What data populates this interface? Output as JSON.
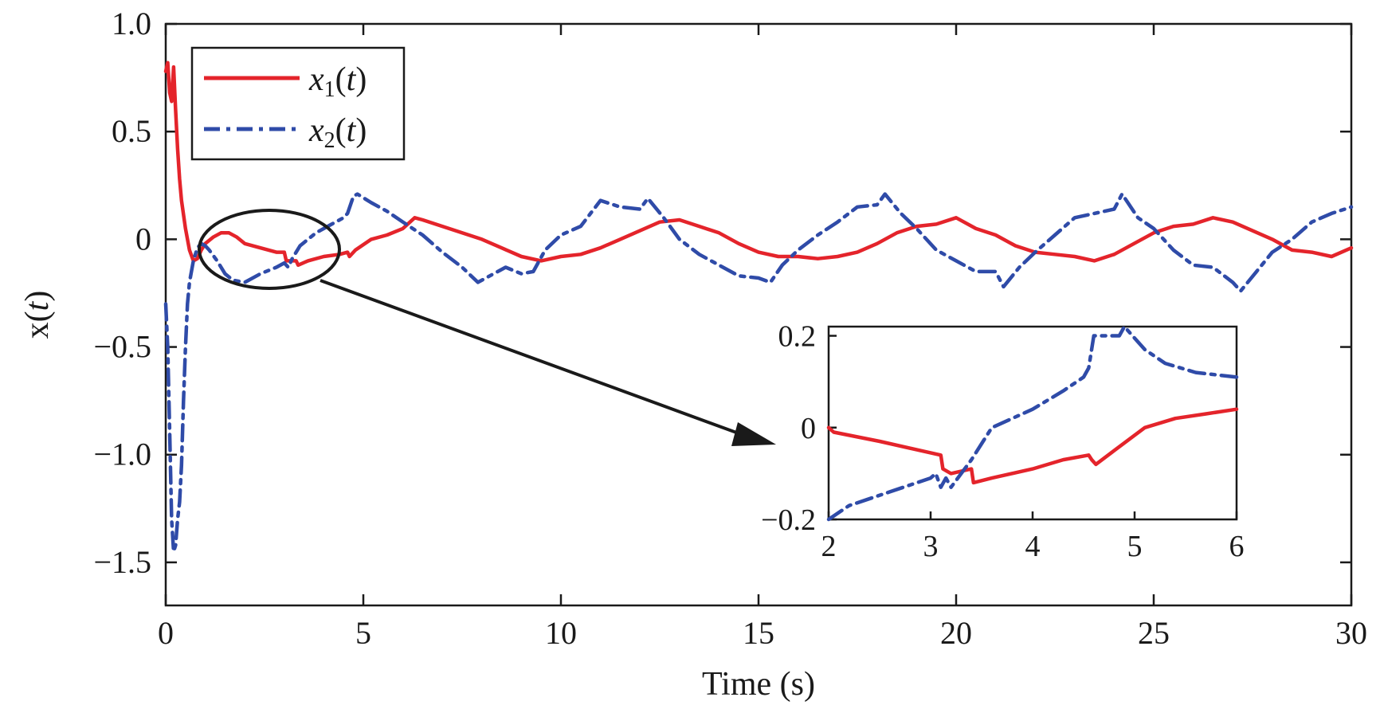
{
  "chart_data": [
    {
      "type": "line",
      "xlabel": "Time (s)",
      "ylabel_main": "x(",
      "ylabel_var": "t",
      "ylabel_close": ")",
      "xlim": [
        0,
        30
      ],
      "ylim": [
        -1.7,
        1.0
      ],
      "xticks": [
        0,
        5,
        10,
        15,
        20,
        25,
        30
      ],
      "xtick_labels": [
        "0",
        "5",
        "10",
        "15",
        "20",
        "25",
        "30"
      ],
      "yticks": [
        1.0,
        0.5,
        0,
        -0.5,
        -1.0,
        -1.5
      ],
      "ytick_labels": [
        "1.0",
        "0.5",
        "0",
        "−0.5",
        "−1.0",
        "−1.5"
      ],
      "grid": false,
      "legend_position": "top-left",
      "series": [
        {
          "name": "x1(t)",
          "legend_base": "x",
          "legend_sub": "1",
          "legend_open": "(",
          "legend_var": "t",
          "legend_close": ")",
          "color": "#e4242b",
          "dash": "solid",
          "x": [
            0,
            0.05,
            0.1,
            0.15,
            0.2,
            0.25,
            0.3,
            0.35,
            0.4,
            0.5,
            0.6,
            0.7,
            0.8,
            0.9,
            1.0,
            1.2,
            1.4,
            1.6,
            1.8,
            2.0,
            2.4,
            2.8,
            3.0,
            3.05,
            3.1,
            3.3,
            3.35,
            3.6,
            4.0,
            4.4,
            4.6,
            4.65,
            4.8,
            5.2,
            5.6,
            6.0,
            6.3,
            6.5,
            7.0,
            7.5,
            8.0,
            8.5,
            9.0,
            9.5,
            10.0,
            10.5,
            11.0,
            11.5,
            12.0,
            12.5,
            13.0,
            13.5,
            14.0,
            14.5,
            15.0,
            15.5,
            16.0,
            16.5,
            17.0,
            17.5,
            18.0,
            18.5,
            19.0,
            19.5,
            20.0,
            20.5,
            21.0,
            21.5,
            22.0,
            22.5,
            23.0,
            23.5,
            24.0,
            24.5,
            25.0,
            25.5,
            26.0,
            26.5,
            27.0,
            27.5,
            28.0,
            28.5,
            29.0,
            29.5,
            30.0
          ],
          "y": [
            0.78,
            0.82,
            0.68,
            0.64,
            0.8,
            0.6,
            0.42,
            0.28,
            0.18,
            0.05,
            -0.05,
            -0.1,
            -0.09,
            -0.05,
            -0.02,
            0.01,
            0.03,
            0.03,
            0.01,
            -0.02,
            -0.04,
            -0.06,
            -0.06,
            -0.1,
            -0.1,
            -0.1,
            -0.12,
            -0.1,
            -0.08,
            -0.07,
            -0.06,
            -0.08,
            -0.05,
            0.0,
            0.02,
            0.05,
            0.1,
            0.09,
            0.06,
            0.03,
            0.0,
            -0.04,
            -0.08,
            -0.1,
            -0.08,
            -0.07,
            -0.04,
            0.0,
            0.04,
            0.08,
            0.09,
            0.06,
            0.03,
            -0.02,
            -0.06,
            -0.08,
            -0.08,
            -0.09,
            -0.08,
            -0.06,
            -0.02,
            0.03,
            0.06,
            0.07,
            0.1,
            0.05,
            0.02,
            -0.03,
            -0.06,
            -0.07,
            -0.08,
            -0.1,
            -0.07,
            -0.02,
            0.03,
            0.06,
            0.07,
            0.1,
            0.08,
            0.04,
            0.0,
            -0.05,
            -0.06,
            -0.08,
            -0.04
          ]
        },
        {
          "name": "x2(t)",
          "legend_base": "x",
          "legend_sub": "2",
          "legend_open": "(",
          "legend_var": "t",
          "legend_close": ")",
          "color": "#2f4ba8",
          "dash": "dash-dot",
          "x": [
            0,
            0.05,
            0.1,
            0.15,
            0.2,
            0.25,
            0.3,
            0.35,
            0.4,
            0.45,
            0.5,
            0.55,
            0.6,
            0.7,
            0.8,
            0.9,
            1.0,
            1.1,
            1.3,
            1.5,
            1.7,
            2.0,
            2.4,
            2.8,
            3.0,
            3.1,
            3.2,
            3.4,
            3.8,
            4.2,
            4.5,
            4.6,
            4.75,
            4.85,
            5.2,
            5.6,
            6.0,
            6.5,
            7.0,
            7.5,
            7.9,
            8.2,
            8.6,
            9.0,
            9.3,
            9.6,
            10.0,
            10.5,
            11.0,
            11.5,
            12.0,
            12.2,
            12.6,
            13.0,
            13.5,
            14.0,
            14.5,
            15.0,
            15.3,
            15.6,
            16.0,
            16.5,
            17.0,
            17.5,
            18.0,
            18.2,
            18.6,
            19.0,
            19.5,
            20.0,
            20.5,
            21.0,
            21.2,
            21.6,
            22.0,
            22.5,
            23.0,
            23.5,
            24.0,
            24.2,
            24.6,
            25.0,
            25.5,
            26.0,
            26.5,
            27.0,
            27.2,
            27.6,
            28.0,
            28.5,
            29.0,
            29.5,
            30.0
          ],
          "y": [
            -0.3,
            -0.5,
            -0.9,
            -1.3,
            -1.45,
            -1.42,
            -1.3,
            -1.22,
            -1.05,
            -0.75,
            -0.5,
            -0.3,
            -0.2,
            -0.1,
            -0.04,
            -0.02,
            -0.03,
            -0.05,
            -0.1,
            -0.16,
            -0.19,
            -0.2,
            -0.16,
            -0.13,
            -0.11,
            -0.13,
            -0.09,
            -0.03,
            0.03,
            0.07,
            0.1,
            0.12,
            0.2,
            0.21,
            0.17,
            0.13,
            0.08,
            0.02,
            -0.06,
            -0.13,
            -0.2,
            -0.17,
            -0.13,
            -0.16,
            -0.15,
            -0.05,
            0.02,
            0.06,
            0.18,
            0.15,
            0.14,
            0.19,
            0.1,
            0.0,
            -0.07,
            -0.12,
            -0.17,
            -0.18,
            -0.2,
            -0.12,
            -0.05,
            0.02,
            0.08,
            0.15,
            0.16,
            0.21,
            0.12,
            0.05,
            -0.05,
            -0.1,
            -0.15,
            -0.15,
            -0.22,
            -0.13,
            -0.06,
            0.02,
            0.1,
            0.12,
            0.14,
            0.21,
            0.1,
            0.05,
            -0.05,
            -0.12,
            -0.13,
            -0.2,
            -0.24,
            -0.15,
            -0.06,
            0.0,
            0.08,
            0.12,
            0.15
          ]
        }
      ],
      "annotations": [
        "zoom-ellipse",
        "zoom-arrow"
      ]
    },
    {
      "type": "line",
      "inset": true,
      "xlabel": "",
      "ylabel": "",
      "xlim": [
        2,
        6
      ],
      "ylim": [
        -0.2,
        0.22
      ],
      "xticks": [
        2,
        3,
        4,
        5,
        6
      ],
      "xtick_labels": [
        "2",
        "3",
        "4",
        "5",
        "6"
      ],
      "yticks": [
        0.2,
        0,
        -0.2
      ],
      "ytick_labels": [
        "0.2",
        "0",
        "−0.2"
      ],
      "grid": false,
      "series": [
        {
          "name": "x1(t)",
          "color": "#e4242b",
          "dash": "solid",
          "x": [
            2.0,
            2.05,
            2.5,
            2.9,
            3.1,
            3.12,
            3.2,
            3.4,
            3.42,
            3.6,
            4.0,
            4.3,
            4.55,
            4.58,
            4.62,
            4.8,
            5.1,
            5.4,
            5.7,
            6.0
          ],
          "y": [
            0.0,
            -0.01,
            -0.03,
            -0.05,
            -0.06,
            -0.09,
            -0.1,
            -0.09,
            -0.12,
            -0.11,
            -0.09,
            -0.07,
            -0.06,
            -0.07,
            -0.08,
            -0.05,
            0.0,
            0.02,
            0.03,
            0.04
          ]
        },
        {
          "name": "x2(t)",
          "color": "#2f4ba8",
          "dash": "dash-dot",
          "x": [
            2.0,
            2.2,
            2.6,
            3.0,
            3.05,
            3.1,
            3.15,
            3.2,
            3.4,
            3.6,
            4.0,
            4.3,
            4.5,
            4.55,
            4.6,
            4.7,
            4.85,
            4.9,
            5.1,
            5.3,
            5.6,
            6.0
          ],
          "y": [
            -0.2,
            -0.17,
            -0.14,
            -0.11,
            -0.1,
            -0.13,
            -0.11,
            -0.13,
            -0.07,
            0.0,
            0.04,
            0.08,
            0.11,
            0.13,
            0.2,
            0.2,
            0.2,
            0.22,
            0.17,
            0.14,
            0.12,
            0.11
          ]
        }
      ]
    }
  ]
}
